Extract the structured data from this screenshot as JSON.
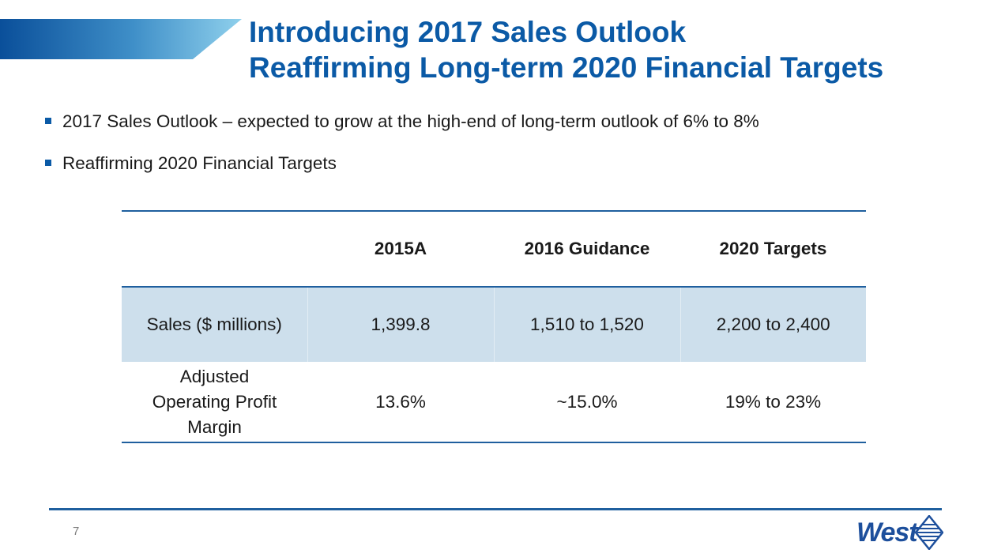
{
  "slide": {
    "title_line1": "Introducing 2017 Sales Outlook",
    "title_line2": "Reaffirming Long-term 2020 Financial Targets",
    "page_number": "7"
  },
  "bullets": [
    "2017 Sales Outlook – expected to grow at the high-end of long-term outlook of 6% to 8%",
    "Reaffirming 2020 Financial Targets"
  ],
  "table": {
    "headers": [
      "",
      "2015A",
      "2016 Guidance",
      "2020 Targets"
    ],
    "rows": [
      [
        "Sales ($ millions)",
        "1,399.8",
        "1,510 to 1,520",
        "2,200 to 2,400"
      ],
      [
        [
          "Adjusted",
          "Operating Profit",
          "Margin"
        ],
        "13.6%",
        "~15.0%",
        "19% to 23%"
      ]
    ]
  },
  "logo": {
    "text": "West"
  },
  "colors": {
    "title_blue": "#0b5aa6",
    "rule_blue": "#1f5f9e",
    "row_highlight": "#cddfec",
    "logo_blue": "#1d4f9c"
  }
}
